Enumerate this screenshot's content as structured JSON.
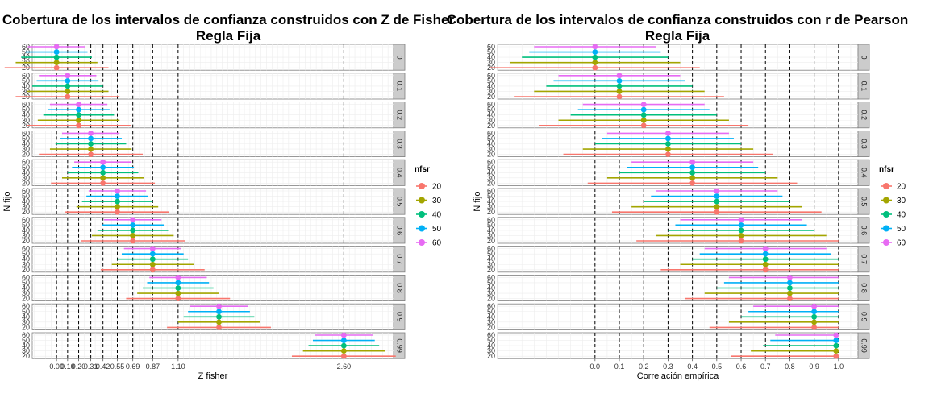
{
  "chart_data": [
    {
      "type": "errorbar",
      "title": "Cobertura de los intervalos de confianza construidos con Z de Fisher",
      "subtitle": "Regla Fija",
      "xlabel": "Z fisher",
      "ylabel": "N fijo",
      "xlim": [
        -0.22,
        3.05
      ],
      "x_ticks": [
        0.0,
        0.1,
        0.2,
        0.31,
        0.42,
        0.55,
        0.69,
        0.87,
        1.1,
        2.6
      ],
      "x_tick_labels": [
        "0.00",
        "0.10",
        "0.20",
        "0.31",
        "0.42",
        "0.55",
        "0.69",
        "0.87",
        "1.10",
        "2.60"
      ],
      "reference_lines": [
        0.0,
        0.1,
        0.2,
        0.31,
        0.42,
        0.55,
        0.69,
        0.87,
        1.1,
        2.6
      ],
      "n_levels": [
        20,
        30,
        40,
        50,
        60
      ],
      "panels": [
        "0",
        "0.1",
        "0.2",
        "0.3",
        "0.4",
        "0.5",
        "0.6",
        "0.7",
        "0.8",
        "0.9",
        "0.99"
      ],
      "centers": [
        0.0,
        0.1,
        0.2,
        0.31,
        0.42,
        0.55,
        0.69,
        0.87,
        1.1,
        1.47,
        2.6
      ],
      "half_widths": {
        "20": 0.47,
        "30": 0.37,
        "40": 0.32,
        "50": 0.28,
        "60": 0.26
      }
    },
    {
      "type": "errorbar",
      "title": "Cobertura de los intervalos de confianza construidos con r de Pearson",
      "subtitle": "Regla Fija",
      "xlabel": "Correlación empírica",
      "ylabel": "N fijo",
      "xlim": [
        -0.4,
        1.08
      ],
      "x_ticks": [
        0.0,
        0.1,
        0.2,
        0.3,
        0.4,
        0.5,
        0.6,
        0.7,
        0.8,
        0.9,
        1.0
      ],
      "x_tick_labels": [
        "0.0",
        "0.1",
        "0.2",
        "0.3",
        "0.4",
        "0.5",
        "0.6",
        "0.7",
        "0.8",
        "0.9",
        "1.0"
      ],
      "reference_lines": [
        0.0,
        0.1,
        0.2,
        0.3,
        0.4,
        0.5,
        0.6,
        0.7,
        0.8,
        0.9,
        1.0
      ],
      "n_levels": [
        20,
        30,
        40,
        50,
        60
      ],
      "panels": [
        "0",
        "0.1",
        "0.2",
        "0.3",
        "0.4",
        "0.5",
        "0.6",
        "0.7",
        "0.8",
        "0.9",
        "0.99"
      ],
      "centers": [
        0.0,
        0.1,
        0.2,
        0.3,
        0.4,
        0.5,
        0.6,
        0.7,
        0.8,
        0.9,
        0.99
      ],
      "half_widths": {
        "20": 0.43,
        "30": 0.35,
        "40": 0.3,
        "50": 0.27,
        "60": 0.25
      }
    }
  ],
  "legend": {
    "title": "nfsr",
    "items": [
      "20",
      "30",
      "40",
      "50",
      "60"
    ],
    "colors": [
      "#F8766D",
      "#A3A500",
      "#00BF7D",
      "#00B0F6",
      "#E76BF3"
    ]
  }
}
